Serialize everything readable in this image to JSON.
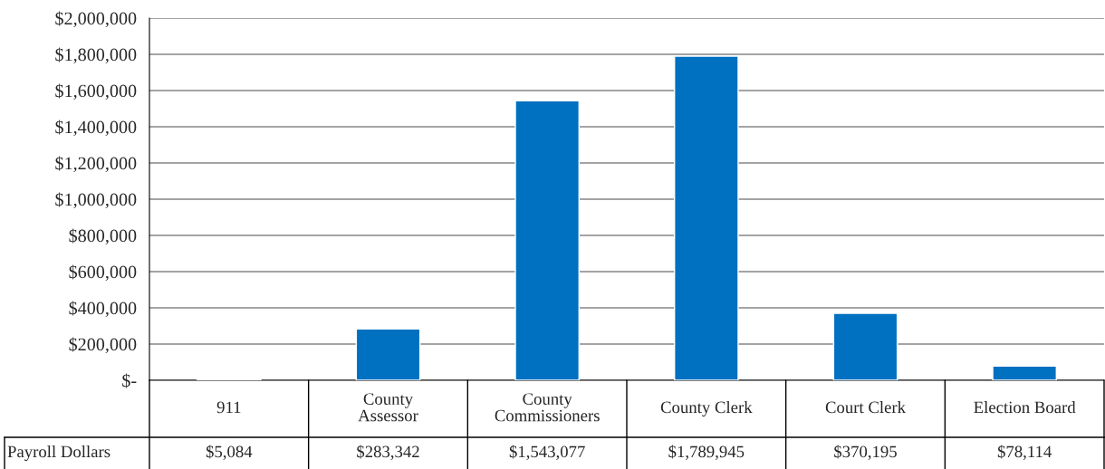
{
  "chart_data": {
    "type": "bar",
    "categories": [
      "911",
      "County Assessor",
      "County Commissioners",
      "County Clerk",
      "Court Clerk",
      "Election Board"
    ],
    "series": [
      {
        "name": "Payroll Dollars",
        "color": "#0070c0",
        "values": [
          5084,
          283342,
          1543077,
          1789945,
          370195,
          78114
        ],
        "value_labels": [
          "$5,084",
          "$283,342",
          "$1,543,077",
          "$1,789,945",
          "$370,195",
          "$78,114"
        ]
      }
    ],
    "ylim": [
      0,
      2000000
    ],
    "yticks": [
      {
        "value": 0,
        "label": "$-"
      },
      {
        "value": 200000,
        "label": "$200,000"
      },
      {
        "value": 400000,
        "label": "$400,000"
      },
      {
        "value": 600000,
        "label": "$600,000"
      },
      {
        "value": 800000,
        "label": "$800,000"
      },
      {
        "value": 1000000,
        "label": "$1,000,000"
      },
      {
        "value": 1200000,
        "label": "$1,200,000"
      },
      {
        "value": 1400000,
        "label": "$1,400,000"
      },
      {
        "value": 1600000,
        "label": "$1,600,000"
      },
      {
        "value": 1800000,
        "label": "$1,800,000"
      },
      {
        "value": 2000000,
        "label": "$2,000,000"
      }
    ],
    "grid": "y",
    "legend": false
  }
}
